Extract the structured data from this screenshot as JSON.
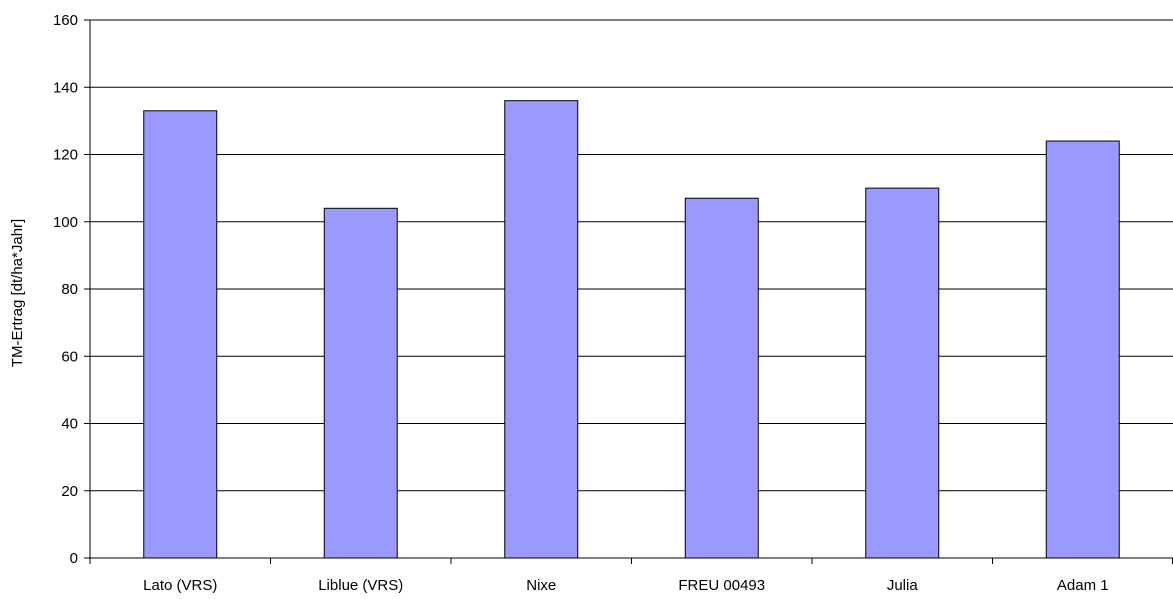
{
  "chart_data": {
    "type": "bar",
    "title": "",
    "xlabel": "",
    "ylabel": "TM-Ertrag [dt/ha*Jahr]",
    "categories": [
      "Lato (VRS)",
      "Liblue (VRS)",
      "Nixe",
      "FREU 00493",
      "Julia",
      "Adam 1"
    ],
    "values": [
      133,
      104,
      136,
      107,
      110,
      124
    ],
    "ylim": [
      0,
      160
    ],
    "yticks": [
      "0",
      "20",
      "40",
      "60",
      "80",
      "100",
      "120",
      "140",
      "160"
    ],
    "grid": true,
    "legend": "none",
    "colors": {
      "bar_fill": "#9999ff",
      "bar_stroke": "#000000",
      "grid": "#000000",
      "background": "#ffffff"
    }
  }
}
